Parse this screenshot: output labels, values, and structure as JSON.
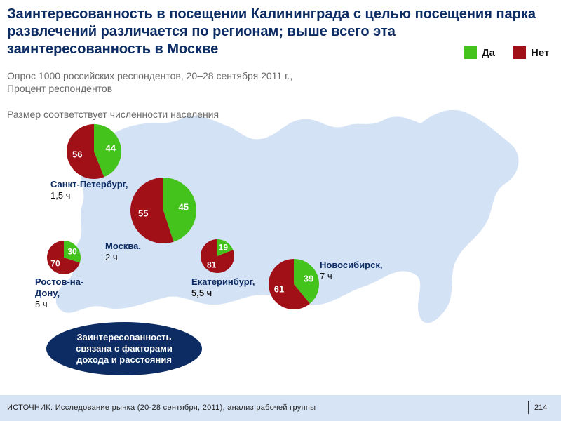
{
  "title": "Заинтересованность в посещении Калининграда с целью посещения парка развлечений различается по регионам; выше всего эта заинтересованность в Москве",
  "subtitle_line1": "Опрос 1000 российских респондентов, 20–28 сентября 2011 г.,",
  "subtitle_line2": "Процент респондентов",
  "size_note": "Размер соответствует численности населения",
  "callout": "Заинтересованность связана с факторами дохода и расстояния",
  "footer": {
    "source": "ИСТОЧНИК: Исследование рынка (20-28 сентября, 2011), анализ рабочей группы",
    "page": "214"
  },
  "colors": {
    "yes": "#44c31c",
    "no": "#a10f17",
    "map": "#d4e2f5",
    "title": "#0c2c63"
  },
  "chart_data": {
    "type": "pie",
    "legend": [
      {
        "label": "Да",
        "color": "#44c31c"
      },
      {
        "label": "Нет",
        "color": "#a10f17"
      }
    ],
    "legend_position": "top-right",
    "series": [
      {
        "city": "Санкт-Петербург,",
        "time": "1,5 ч",
        "yes": 44,
        "no": 56
      },
      {
        "city": "Москва,",
        "time": "2 ч",
        "yes": 45,
        "no": 55
      },
      {
        "city": "Ростов-на-Дону,",
        "time": "5 ч",
        "yes": 30,
        "no": 70
      },
      {
        "city": "Екатеринбург,",
        "time": "5,5 ч",
        "yes": 19,
        "no": 81
      },
      {
        "city": "Новосибирск,",
        "time": "7 ч",
        "yes": 39,
        "no": 61
      }
    ]
  }
}
